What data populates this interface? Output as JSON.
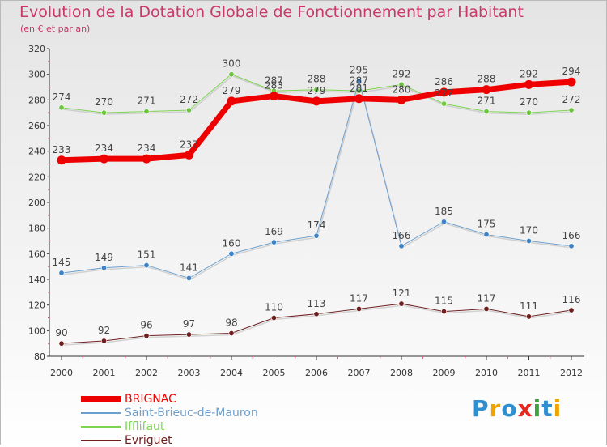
{
  "header": {
    "title": "Evolution de la Dotation Globale de Fonctionnement par Habitant",
    "subtitle": "(en € et par an)"
  },
  "logo": {
    "text": "Proxiti",
    "letters": [
      {
        "ch": "P",
        "color": "#2f8fd1"
      },
      {
        "ch": "r",
        "color": "#f0a400"
      },
      {
        "ch": "o",
        "color": "#2f8fd1"
      },
      {
        "ch": "x",
        "color": "#e6281f"
      },
      {
        "ch": "i",
        "color": "#3aa640"
      },
      {
        "ch": "t",
        "color": "#2f8fd1"
      },
      {
        "ch": "i",
        "color": "#f0a400"
      }
    ]
  },
  "chart_data": {
    "type": "line",
    "title": "Evolution de la Dotation Globale de Fonctionnement par Habitant",
    "subtitle": "(en € et par an)",
    "x": [
      "2000",
      "2001",
      "2002",
      "2003",
      "2004",
      "2005",
      "2006",
      "2007",
      "2008",
      "2009",
      "2010",
      "2011",
      "2012"
    ],
    "ylim": [
      80,
      320
    ],
    "yticks": [
      80,
      100,
      120,
      140,
      160,
      180,
      200,
      220,
      240,
      260,
      280,
      300,
      320
    ],
    "grid": false,
    "legend_position": "bottom-left",
    "series": [
      {
        "name": "Ifflifaut",
        "color": "#7dd450",
        "marker_color": "#6cc440",
        "stroke": 1,
        "values": [
          274,
          270,
          271,
          272,
          300,
          287,
          288,
          287,
          292,
          277,
          271,
          270,
          272
        ]
      },
      {
        "name": "Saint-Brieuc-de-Mauron",
        "color": "#6d9fcc",
        "marker_color": "#3f83c4",
        "stroke": 1,
        "values": [
          145,
          149,
          151,
          141,
          160,
          169,
          174,
          295,
          166,
          185,
          175,
          170,
          166
        ]
      },
      {
        "name": "Evriguet",
        "color": "#6e2020",
        "marker_color": "#6e2020",
        "stroke": 1,
        "values": [
          90,
          92,
          96,
          97,
          98,
          110,
          113,
          117,
          121,
          115,
          117,
          111,
          116
        ]
      },
      {
        "name": "BRIGNAC",
        "color": "#ee0000",
        "marker_color": "#ee0000",
        "stroke": 7,
        "values": [
          233,
          234,
          234,
          237,
          279,
          283,
          279,
          281,
          280,
          286,
          288,
          292,
          294
        ]
      }
    ]
  },
  "legend": {
    "items": [
      {
        "label": "BRIGNAC",
        "color": "#ee0000",
        "thickness": 7
      },
      {
        "label": "Saint-Brieuc-de-Mauron",
        "color": "#6d9fcc",
        "thickness": 2
      },
      {
        "label": "Ifflifaut",
        "color": "#7dd450",
        "thickness": 2
      },
      {
        "label": "Evriguet",
        "color": "#6e2020",
        "thickness": 2
      }
    ]
  }
}
